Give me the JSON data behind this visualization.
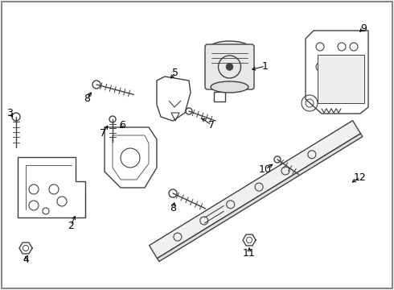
{
  "bg_color": "#ffffff",
  "line_color": "#404040",
  "label_color": "#000000",
  "fig_width": 4.9,
  "fig_height": 3.6,
  "dpi": 100,
  "border_color": "#888888",
  "border_lw": 1.5
}
